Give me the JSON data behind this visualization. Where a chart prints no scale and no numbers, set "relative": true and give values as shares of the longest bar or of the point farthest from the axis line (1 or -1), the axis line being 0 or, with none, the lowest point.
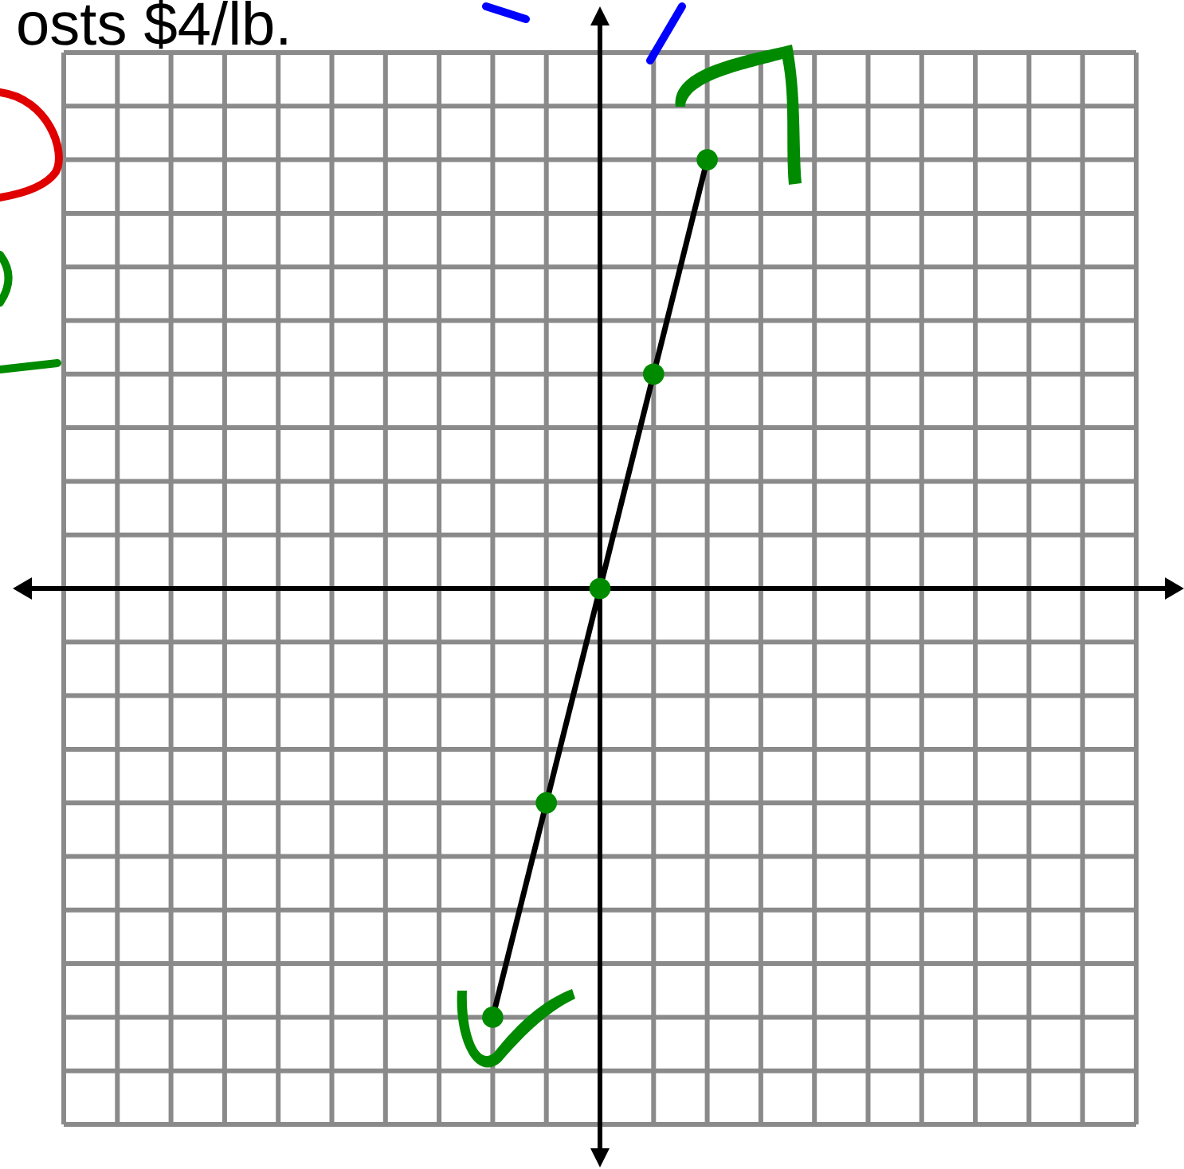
{
  "chart_data": {
    "type": "line",
    "relative": true,
    "grid": true,
    "tick_labels": false,
    "marker": "circle",
    "annotations": [
      "osts $4/lb."
    ],
    "categories": [
      null,
      null,
      null,
      null,
      null
    ],
    "series": [
      {
        "color": "#000000",
        "values": [
          -1,
          -0.5,
          0,
          0.5,
          1
        ]
      }
    ]
  }
}
